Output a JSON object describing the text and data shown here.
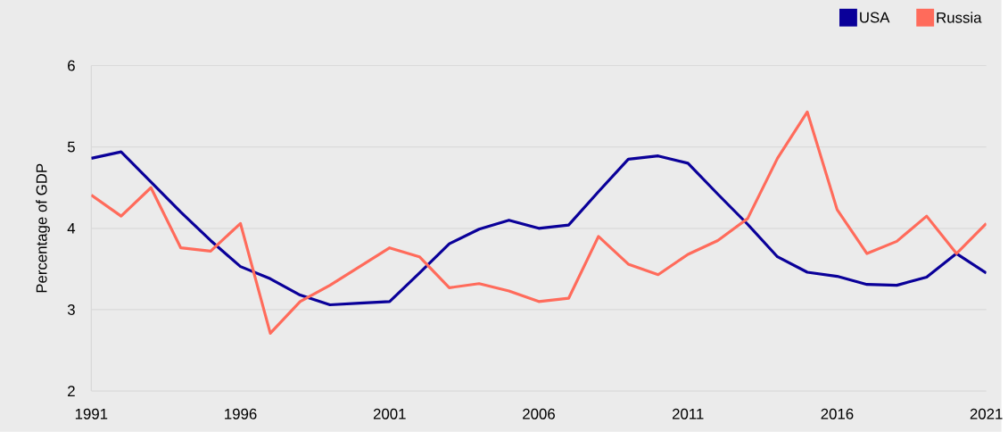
{
  "chart_data": {
    "type": "line",
    "ylabel": "Percentage of GDP",
    "x": [
      1991,
      1992,
      1993,
      1994,
      1995,
      1996,
      1997,
      1998,
      1999,
      2000,
      2001,
      2002,
      2003,
      2004,
      2005,
      2006,
      2007,
      2008,
      2009,
      2010,
      2011,
      2012,
      2013,
      2014,
      2015,
      2016,
      2017,
      2018,
      2019,
      2020,
      2021
    ],
    "series": [
      {
        "name": "USA",
        "color": "#0a0099",
        "values": [
          4.86,
          4.94,
          4.57,
          4.2,
          3.85,
          3.53,
          3.38,
          3.18,
          3.06,
          3.08,
          3.1,
          3.45,
          3.81,
          3.99,
          4.1,
          4.0,
          4.04,
          4.45,
          4.85,
          4.89,
          4.8,
          4.42,
          4.05,
          3.65,
          3.46,
          3.41,
          3.31,
          3.3,
          3.4,
          3.69,
          3.45
        ]
      },
      {
        "name": "Russia",
        "color": "#ff6b5b",
        "values": [
          4.41,
          4.15,
          4.5,
          3.76,
          3.72,
          4.06,
          2.71,
          3.1,
          3.3,
          3.53,
          3.76,
          3.65,
          3.27,
          3.32,
          3.23,
          3.1,
          3.14,
          3.9,
          3.56,
          3.43,
          3.68,
          3.85,
          4.12,
          4.86,
          5.43,
          4.23,
          3.69,
          3.84,
          4.15,
          3.69,
          4.06
        ]
      }
    ],
    "xlim": [
      1991,
      2021
    ],
    "xticks": [
      1991,
      1996,
      2001,
      2006,
      2011,
      2016,
      2021
    ],
    "ylim": [
      2,
      6
    ],
    "yticks": [
      2,
      3,
      4,
      5,
      6
    ],
    "grid": "y",
    "legend": "top right",
    "marker": "none",
    "line_style": "solid"
  }
}
